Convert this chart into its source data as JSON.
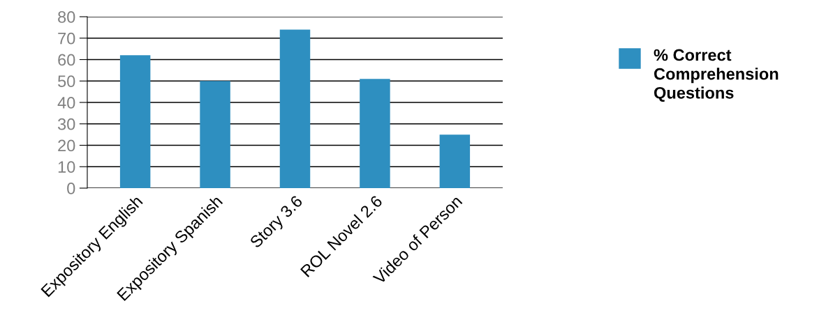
{
  "chart_data": {
    "type": "bar",
    "categories": [
      "Expository English",
      "Expository Spanish",
      "Story 3.6",
      "ROL Novel 2.6",
      "Video of Person"
    ],
    "series": [
      {
        "name": "% Correct Comprehension Questions",
        "color": "#2e8fc0",
        "values": [
          62,
          50,
          74,
          51,
          25
        ]
      }
    ],
    "ylim": [
      0,
      80
    ],
    "yticks": [
      0,
      10,
      20,
      30,
      40,
      50,
      60,
      70,
      80
    ],
    "grid": "y",
    "legend": "right"
  }
}
